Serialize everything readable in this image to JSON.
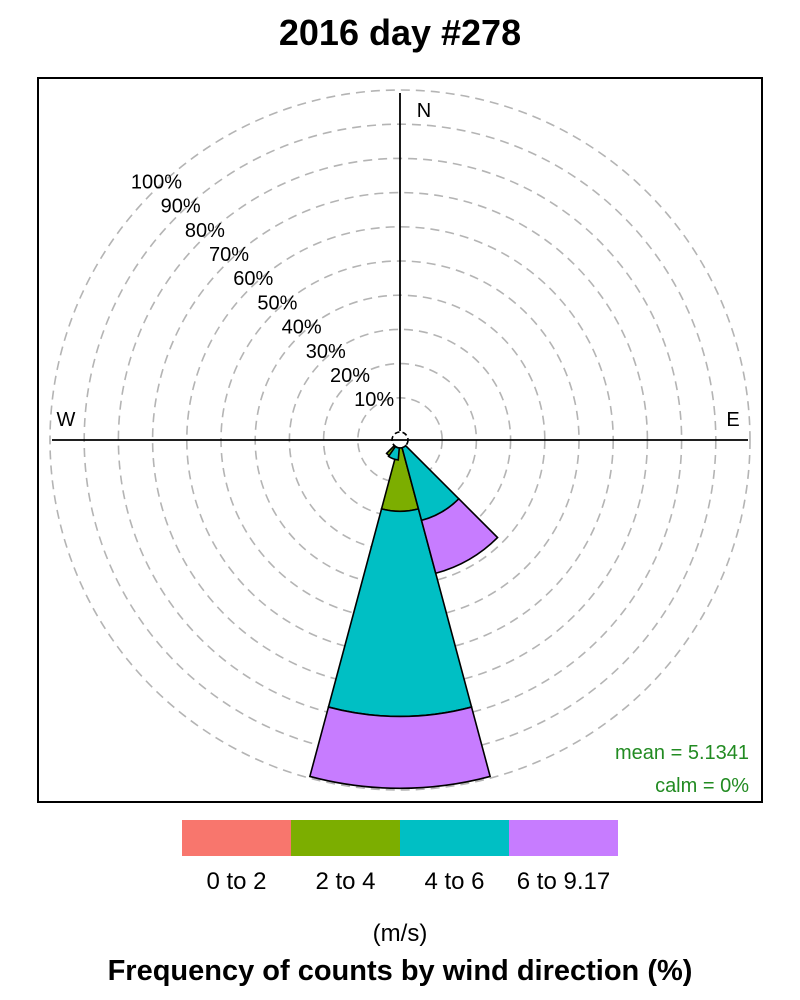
{
  "title": "2016 day #278",
  "chart_data": {
    "type": "windrose",
    "ring_labels": [
      "10%",
      "20%",
      "30%",
      "40%",
      "50%",
      "60%",
      "70%",
      "80%",
      "90%",
      "100%"
    ],
    "directions": [
      "N",
      "E",
      "W"
    ],
    "speed_bins": [
      "0 to 2",
      "2 to 4",
      "4 to 6",
      "6 to 9.17"
    ],
    "bin_colors": [
      "#F8766D",
      "#7CAE00",
      "#00BFC4",
      "#C77CFF"
    ],
    "petals": [
      {
        "direction_deg": 180,
        "cumulative": [
          0,
          18.5,
          78.5,
          99.5
        ]
      },
      {
        "direction_deg": 150,
        "cumulative": [
          0,
          0,
          22.0,
          38.0
        ]
      },
      {
        "direction_deg": 210,
        "cumulative": [
          0,
          3.2,
          3.2,
          3.2
        ]
      },
      {
        "direction_deg": 200,
        "cumulative": [
          0,
          0,
          3.5,
          3.5
        ]
      }
    ],
    "stats": {
      "mean": "mean = 5.1341",
      "calm": "calm = 0%"
    },
    "unit": "(m/s)",
    "xlabel": "Frequency of counts by wind direction (%)",
    "grid": true
  }
}
